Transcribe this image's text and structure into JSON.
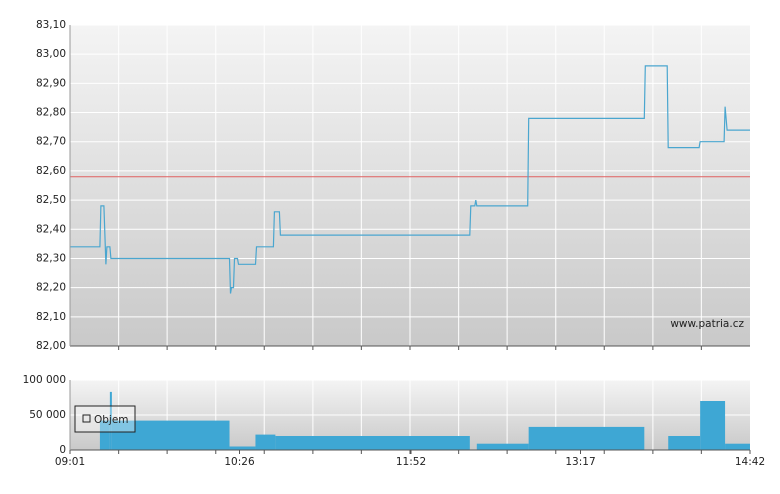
{
  "chart_data": [
    {
      "type": "line",
      "annotation": "www.patria.cz",
      "color": "#4aa6cf",
      "reference_line": 82.58,
      "reference_color": "#e06060",
      "xlim": [
        541,
        882
      ],
      "xgrid": [
        565.4,
        589.7,
        614.1,
        638.4,
        662.8,
        687.1,
        711.5,
        735.9,
        760.2,
        784.6,
        808.9,
        833.3,
        857.6
      ],
      "ylim": [
        82.0,
        83.1
      ],
      "yticks": [
        {
          "value": 82.0,
          "label": "82,00"
        },
        {
          "value": 82.1,
          "label": "82,10"
        },
        {
          "value": 82.2,
          "label": "82,20"
        },
        {
          "value": 82.3,
          "label": "82,30"
        },
        {
          "value": 82.4,
          "label": "82,40"
        },
        {
          "value": 82.5,
          "label": "82,50"
        },
        {
          "value": 82.6,
          "label": "82,60"
        },
        {
          "value": 82.7,
          "label": "82,70"
        },
        {
          "value": 82.8,
          "label": "82,80"
        },
        {
          "value": 82.9,
          "label": "82,90"
        },
        {
          "value": 83.0,
          "label": "83,00"
        },
        {
          "value": 83.1,
          "label": "83,10"
        }
      ],
      "x": [
        541,
        556,
        556.5,
        558,
        559,
        559.5,
        561,
        561.5,
        621,
        621.5,
        622,
        623,
        623.5,
        625,
        625.5,
        634,
        634.5,
        643,
        643.5,
        646,
        646.5,
        741.5,
        742,
        744,
        744.5,
        745,
        770.5,
        771,
        829,
        829.5,
        840.5,
        841,
        856.5,
        857,
        869,
        869.5,
        870.5,
        882
      ],
      "values": [
        82.34,
        82.34,
        82.48,
        82.48,
        82.28,
        82.34,
        82.34,
        82.3,
        82.3,
        82.18,
        82.2,
        82.2,
        82.3,
        82.3,
        82.28,
        82.28,
        82.34,
        82.34,
        82.46,
        82.46,
        82.38,
        82.38,
        82.48,
        82.48,
        82.5,
        82.48,
        82.48,
        82.78,
        82.78,
        82.96,
        82.96,
        82.68,
        82.68,
        82.7,
        82.7,
        82.82,
        82.74,
        82.74
      ]
    },
    {
      "type": "histogram",
      "xlim": [
        541,
        882
      ],
      "xticks": [
        {
          "value": 541,
          "label": "09:01"
        },
        {
          "value": 626,
          "label": "10:26"
        },
        {
          "value": 712,
          "label": "11:52"
        },
        {
          "value": 797,
          "label": "13:17"
        },
        {
          "value": 882,
          "label": "14:42"
        }
      ],
      "xgrid": [
        565.4,
        589.7,
        614.1,
        638.4,
        662.8,
        687.1,
        711.5,
        735.9,
        760.2,
        784.6,
        808.9,
        833.3,
        857.6
      ],
      "ylim": [
        0,
        100000
      ],
      "yticks": [
        0,
        {
          "value": 50000,
          "label": "50 000"
        },
        {
          "value": 100000,
          "label": "100 000"
        }
      ],
      "bins": [
        541,
        556,
        561,
        562,
        621,
        634,
        644,
        741.5,
        745,
        771,
        829,
        841,
        857,
        869.5,
        882
      ],
      "series": [
        {
          "name": "Objem",
          "color": "#3ea7d4",
          "values": [
            0,
            42000,
            83000,
            42000,
            5000,
            22000,
            20000,
            0,
            9000,
            33000,
            0,
            20000,
            70000,
            9000
          ]
        }
      ]
    }
  ]
}
